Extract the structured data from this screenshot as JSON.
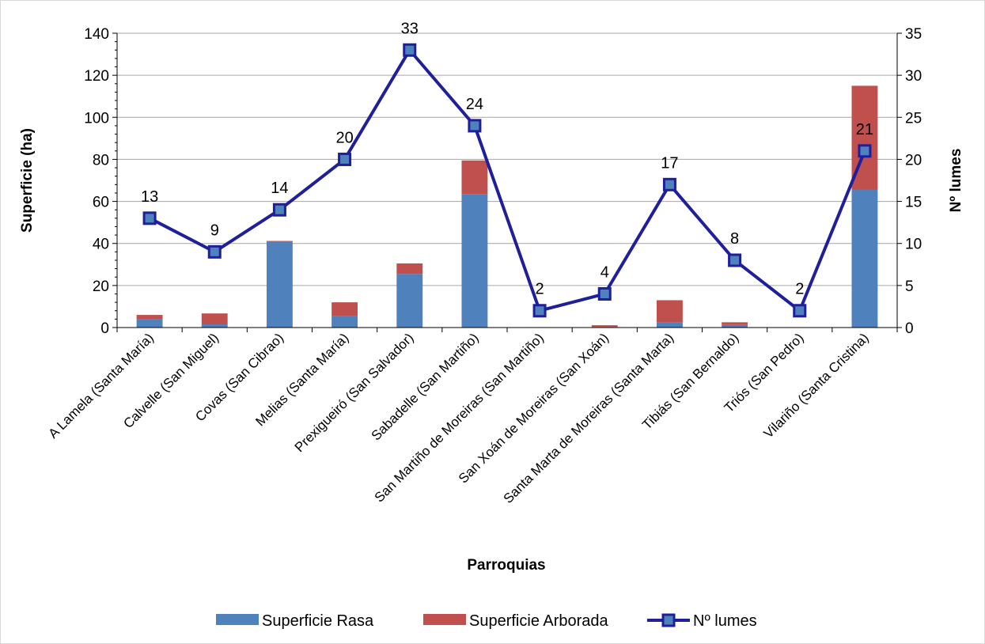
{
  "chart_data": {
    "type": "bar",
    "subtype": "stacked bar with line on secondary axis",
    "categories": [
      "A Lamela (Santa María)",
      "Calvelle (San Miguel)",
      "Covas (San Cibrao)",
      "Melias (Santa María)",
      "Prexigueiró (San Salvador)",
      "Sabadelle (San Martiño)",
      "San Martiño de Moreiras (San Martiño)",
      "San Xoán de Moreiras (San Xoán)",
      "Santa Marta de Moreiras (Santa Marta)",
      "Tibiás (San Bernaldo)",
      "Triós (San Pedro)",
      "Vilariño (Santa Cristina)"
    ],
    "series": [
      {
        "name": "Superficie Rasa",
        "type": "bar",
        "axis": "left",
        "color": "#4f81bd",
        "values": [
          4,
          1.5,
          41,
          5.5,
          25.5,
          63.5,
          0,
          0.3,
          2.5,
          1.2,
          0,
          65.5
        ]
      },
      {
        "name": "Superficie Arborada",
        "type": "bar",
        "axis": "left",
        "color": "#c0504d",
        "values": [
          2,
          5.2,
          0.2,
          6.5,
          5,
          16,
          0.2,
          0.8,
          10.5,
          1.3,
          0,
          49.5
        ]
      },
      {
        "name": "Nº lumes",
        "type": "line",
        "axis": "right",
        "color": "#1f1f9b",
        "marker_fill": "#4f81bd",
        "values": [
          13,
          9,
          14,
          20,
          33,
          24,
          2,
          4,
          17,
          8,
          2,
          21
        ]
      }
    ],
    "xlabel": "Parroquias",
    "ylabel": "Superficie (ha)",
    "y2label": "Nº lumes",
    "ylim": [
      0,
      140
    ],
    "y2lim": [
      0,
      35
    ],
    "yticks": [
      "0",
      "20",
      "40",
      "60",
      "80",
      "100",
      "120",
      "140"
    ],
    "y2ticks": [
      "0",
      "5",
      "10",
      "15",
      "20",
      "25",
      "30",
      "35"
    ],
    "grid": true,
    "legend_position": "bottom"
  }
}
